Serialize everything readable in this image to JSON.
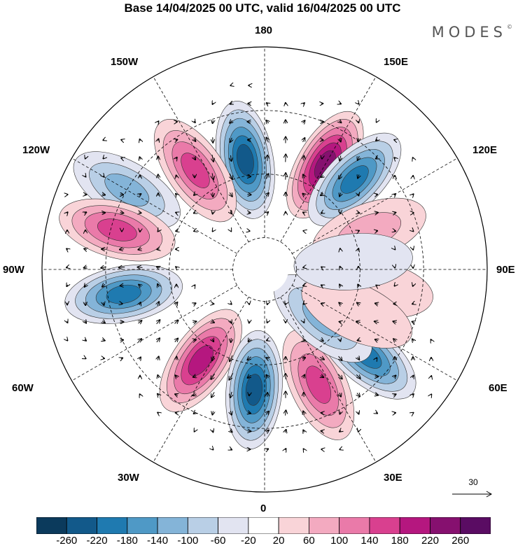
{
  "title": "Base 14/04/2025 00 UTC, valid 16/04/2025 00 UTC",
  "brand": "MODES",
  "brand_mark": "©",
  "projection": "north-polar-stereographic",
  "longitude_labels": {
    "top": "180",
    "upper_left": "150W",
    "upper_right": "150E",
    "mid_left": "120W",
    "mid_right": "120E",
    "left": "90W",
    "right": "90E",
    "lower_left": "60W",
    "lower_right": "60E",
    "bottom_left": "30W",
    "bottom_right": "30E",
    "bottom": "0"
  },
  "reference_vector": {
    "label": "30"
  },
  "colorbar": {
    "ticks": [
      "-260",
      "-220",
      "-180",
      "-140",
      "-100",
      "-60",
      "-20",
      "20",
      "60",
      "100",
      "140",
      "180",
      "220",
      "260"
    ],
    "colors": [
      "#0b3a5c",
      "#12598a",
      "#1f7ab0",
      "#4f99c6",
      "#84b4d8",
      "#b9cfe6",
      "#e2e4f1",
      "#ffffff",
      "#f9d4d8",
      "#f3aac0",
      "#ea7aa9",
      "#d9408f",
      "#b5177f",
      "#86106f",
      "#5a0c63"
    ]
  },
  "anomaly_centers": [
    {
      "lon": 150,
      "lat": 52,
      "value": 260
    },
    {
      "lon": -170,
      "lat": 55,
      "value": -250
    },
    {
      "lon": 135,
      "lat": 50,
      "value": -190
    },
    {
      "lon": -145,
      "lat": 52,
      "value": 170
    },
    {
      "lon": -120,
      "lat": 40,
      "value": -110
    },
    {
      "lon": -105,
      "lat": 42,
      "value": 160
    },
    {
      "lon": -80,
      "lat": 45,
      "value": -190
    },
    {
      "lon": -35,
      "lat": 55,
      "value": 200
    },
    {
      "lon": -5,
      "lat": 52,
      "value": -230
    },
    {
      "lon": 25,
      "lat": 50,
      "value": 170
    },
    {
      "lon": 50,
      "lat": 48,
      "value": -200
    },
    {
      "lon": 50,
      "lat": 66,
      "value": -110
    },
    {
      "lon": 110,
      "lat": 55,
      "value": 70
    },
    {
      "lon": 80,
      "lat": 55,
      "value": 60
    },
    {
      "lon": 65,
      "lat": 58,
      "value": 60
    },
    {
      "lon": 95,
      "lat": 62,
      "value": -40
    }
  ]
}
